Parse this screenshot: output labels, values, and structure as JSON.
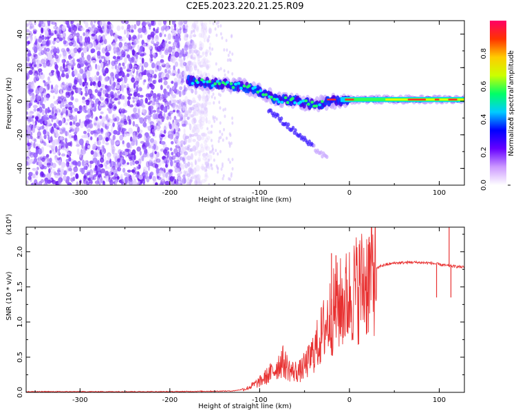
{
  "title": "C2E5.2023.220.21.25.R09",
  "chart_data": [
    {
      "type": "heatmap",
      "name": "spectrogram",
      "xlabel": "Height of straight line (km)",
      "ylabel": "Frequency (Hz)",
      "xlim": [
        -360,
        128
      ],
      "ylim": [
        -50,
        48
      ],
      "xticks": [
        -300,
        -200,
        -100,
        0,
        100
      ],
      "yticks": [
        -40,
        -20,
        0,
        20,
        40
      ],
      "noise_region_x": [
        -360,
        -160
      ],
      "signal_track": [
        {
          "x": -180,
          "y": 12
        },
        {
          "x": -160,
          "y": 11
        },
        {
          "x": -140,
          "y": 10
        },
        {
          "x": -120,
          "y": 9
        },
        {
          "x": -100,
          "y": 6
        },
        {
          "x": -80,
          "y": 1
        },
        {
          "x": -60,
          "y": 0
        },
        {
          "x": -40,
          "y": -2
        },
        {
          "x": -20,
          "y": 0
        },
        {
          "x": 0,
          "y": 1
        },
        {
          "x": 40,
          "y": 1
        },
        {
          "x": 80,
          "y": 1
        },
        {
          "x": 128,
          "y": 1
        }
      ],
      "colorbar": {
        "label": "Normalized spectral amplitude",
        "range": [
          0.0,
          1.0
        ],
        "ticks": [
          0.0,
          0.2,
          0.4,
          0.6,
          0.8
        ],
        "colors_low_to_high": [
          "#ffffff",
          "#cc99ff",
          "#6600ff",
          "#0000ff",
          "#00ccff",
          "#00ff66",
          "#ccff00",
          "#ffcc00",
          "#ff3300",
          "#ff0066"
        ]
      }
    },
    {
      "type": "line",
      "name": "snr",
      "xlabel": "Height of straight line (km)",
      "ylabel": "SNR (10 * v/v)",
      "yscale_note": "(x10⁴)",
      "xlim": [
        -360,
        128
      ],
      "ylim": [
        0,
        2.35
      ],
      "xticks": [
        -300,
        -200,
        -100,
        0,
        100
      ],
      "yticks": [
        0.0,
        0.5,
        1.0,
        1.5,
        2.0
      ],
      "line_color": "#e83030",
      "series": [
        {
          "values": [
            {
              "x": -360,
              "y": 0.01
            },
            {
              "x": -200,
              "y": 0.01
            },
            {
              "x": -130,
              "y": 0.02
            },
            {
              "x": -115,
              "y": 0.05
            },
            {
              "x": -100,
              "y": 0.15
            },
            {
              "x": -85,
              "y": 0.3
            },
            {
              "x": -75,
              "y": 0.45
            },
            {
              "x": -65,
              "y": 0.3
            },
            {
              "x": -55,
              "y": 0.3
            },
            {
              "x": -45,
              "y": 0.45
            },
            {
              "x": -35,
              "y": 0.7
            },
            {
              "x": -25,
              "y": 1.0
            },
            {
              "x": -15,
              "y": 1.2
            },
            {
              "x": -5,
              "y": 1.3
            },
            {
              "x": 5,
              "y": 1.45
            },
            {
              "x": 15,
              "y": 1.55
            },
            {
              "x": 25,
              "y": 1.7
            },
            {
              "x": 35,
              "y": 1.8
            },
            {
              "x": 50,
              "y": 1.84
            },
            {
              "x": 70,
              "y": 1.85
            },
            {
              "x": 90,
              "y": 1.84
            },
            {
              "x": 110,
              "y": 1.8
            },
            {
              "x": 128,
              "y": 1.78
            }
          ],
          "spikes": [
            {
              "x": -20,
              "y": 1.98
            },
            {
              "x": -15,
              "y": 1.95
            },
            {
              "x": -10,
              "y": 1.35
            },
            {
              "x": 97,
              "y": 1.35
            },
            {
              "x": 111,
              "y": 2.35
            },
            {
              "x": 113,
              "y": 1.35
            }
          ]
        }
      ]
    }
  ]
}
